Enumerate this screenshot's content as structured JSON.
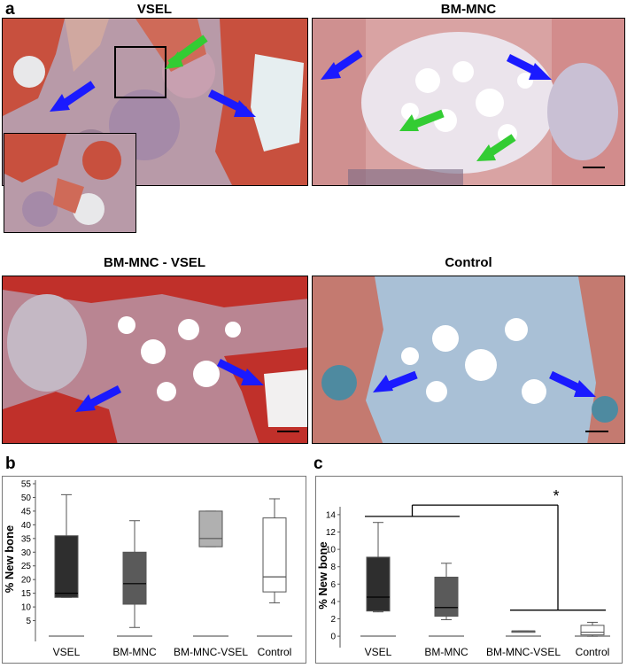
{
  "panel_letters": {
    "a": "a",
    "b": "b",
    "c": "c"
  },
  "micrographs": [
    {
      "title": "VSEL"
    },
    {
      "title": "BM-MNC"
    },
    {
      "title": "BM-MNC - VSEL"
    },
    {
      "title": "Control"
    }
  ],
  "colors": {
    "arrow_blue": "#1a1aff",
    "arrow_green": "#33cc33",
    "stain_red": "#c8503e",
    "stain_pink": "#d9a3a3",
    "stain_purple": "#a58aa8",
    "stain_blue": "#8fb0cc"
  },
  "chart_data": [
    {
      "type": "box",
      "panel": "b",
      "ylabel": "% New bone",
      "yticks": [
        5,
        10,
        15,
        20,
        25,
        30,
        35,
        40,
        45,
        50,
        55
      ],
      "ylim": [
        0,
        55
      ],
      "categories": [
        "VSEL",
        "BM-MNC",
        "BM-MNC-VSEL",
        "Control"
      ],
      "boxes": [
        {
          "min": 13.5,
          "q1": 13.5,
          "median": 15,
          "q3": 36,
          "max": 51,
          "fill": "#2e2e2e"
        },
        {
          "min": 2.5,
          "q1": 11,
          "median": 18.5,
          "q3": 30,
          "max": 41.5,
          "fill": "#5a5a5a"
        },
        {
          "min": 32,
          "q1": 32,
          "median": 35,
          "q3": 45,
          "max": 45,
          "fill": "#b0b0b0"
        },
        {
          "min": 11.5,
          "q1": 15.5,
          "median": 21,
          "q3": 42.5,
          "max": 49.5,
          "fill": "#ffffff"
        }
      ]
    },
    {
      "type": "box",
      "panel": "c",
      "ylabel": "% New bone",
      "yticks": [
        0,
        2,
        4,
        6,
        8,
        10,
        12,
        14
      ],
      "ylim": [
        -0.5,
        14.5
      ],
      "categories": [
        "VSEL",
        "BM-MNC",
        "BM-MNC-VSEL",
        "Control"
      ],
      "boxes": [
        {
          "min": 2.8,
          "q1": 2.9,
          "median": 4.5,
          "q3": 9.1,
          "max": 13.1,
          "fill": "#2e2e2e"
        },
        {
          "min": 1.9,
          "q1": 2.3,
          "median": 3.3,
          "q3": 6.8,
          "max": 8.4,
          "fill": "#5a5a5a"
        },
        {
          "min": 0.6,
          "q1": 0.6,
          "median": 0.6,
          "q3": 0.6,
          "max": 0.6,
          "fill": "#b0b0b0"
        },
        {
          "min": 0,
          "q1": 0.15,
          "median": 0.45,
          "q3": 1.25,
          "max": 1.6,
          "fill": "#ffffff"
        }
      ],
      "significance": "*"
    }
  ]
}
